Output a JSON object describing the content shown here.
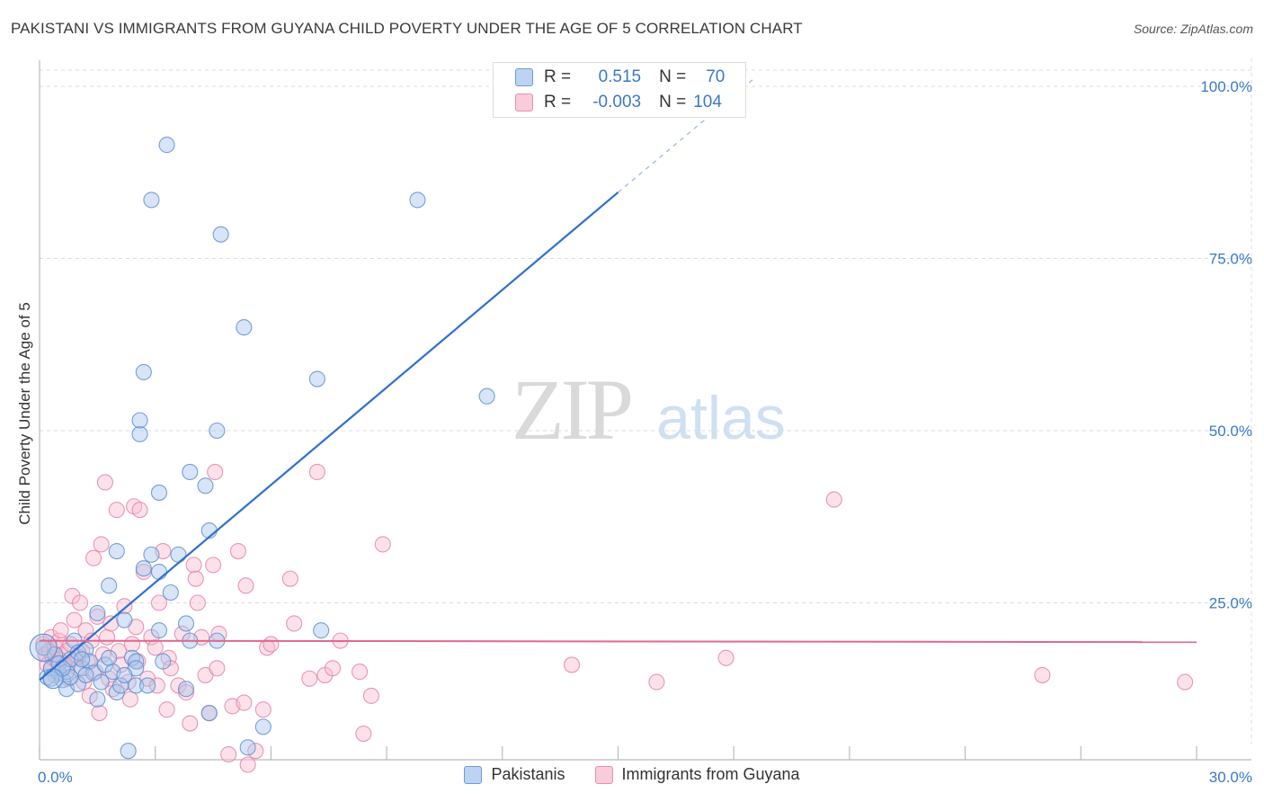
{
  "header": {
    "title": "PAKISTANI VS IMMIGRANTS FROM GUYANA CHILD POVERTY UNDER THE AGE OF 5 CORRELATION CHART",
    "source": "Source: ZipAtlas.com"
  },
  "watermark": {
    "zip": "ZIP",
    "atlas": "atlas"
  },
  "correlation_legend": {
    "rows": [
      {
        "r_label": "R =",
        "r_value": "0.515",
        "n_label": "N =",
        "n_value": "70",
        "color": "#8fb4e3"
      },
      {
        "r_label": "R =",
        "r_value": "-0.003",
        "n_label": "N =",
        "n_value": "104",
        "color": "#f0a6bf"
      }
    ]
  },
  "legend": {
    "items": [
      {
        "label": "Pakistanis",
        "color": "#8fb4e3"
      },
      {
        "label": "Immigrants from Guyana",
        "color": "#f0a6bf"
      }
    ]
  },
  "colors": {
    "blue_fill": "#a9c6ec",
    "blue_stroke": "#5e8fd2",
    "blue_line": "#2f6fcf",
    "pink_fill": "#f6bfd0",
    "pink_stroke": "#e884a6",
    "pink_line": "#e0688f",
    "grid": "#dddddd",
    "tick_label": "#3b78c8"
  },
  "chart_data": {
    "type": "scatter",
    "title": "PAKISTANI VS IMMIGRANTS FROM GUYANA CHILD POVERTY UNDER THE AGE OF 5 CORRELATION CHART",
    "xlabel": "",
    "ylabel": "Child Poverty Under the Age of 5",
    "xlim": [
      0,
      30
    ],
    "ylim": [
      0,
      100
    ],
    "x_tick_labels": [
      "0.0%",
      "30.0%"
    ],
    "y_ticks": [
      25,
      50,
      75,
      100
    ],
    "y_tick_labels": [
      "25.0%",
      "50.0%",
      "75.0%",
      "100.0%"
    ],
    "series": [
      {
        "name": "Pakistanis",
        "r": 0.515,
        "n": 70,
        "trend": {
          "x0": 0,
          "y0": 13.8,
          "x1": 15,
          "y1": 84.6,
          "dashed_to_x": 18.5,
          "dashed_to_y": 101
        },
        "points": [
          [
            0.1,
            18.5
          ],
          [
            0.2,
            14.2
          ],
          [
            0.3,
            15.5
          ],
          [
            0.4,
            17.5
          ],
          [
            0.5,
            14.8
          ],
          [
            0.5,
            16.2
          ],
          [
            0.6,
            13.8
          ],
          [
            0.7,
            15.0
          ],
          [
            0.7,
            12.5
          ],
          [
            0.8,
            16.8
          ],
          [
            0.9,
            19.5
          ],
          [
            1.0,
            13.2
          ],
          [
            1.0,
            17.8
          ],
          [
            1.1,
            15.5
          ],
          [
            1.2,
            18.2
          ],
          [
            1.3,
            16.5
          ],
          [
            1.4,
            14.8
          ],
          [
            1.5,
            11.0
          ],
          [
            1.5,
            23.5
          ],
          [
            1.6,
            13.5
          ],
          [
            1.7,
            16.0
          ],
          [
            1.8,
            17.0
          ],
          [
            1.8,
            27.5
          ],
          [
            1.9,
            15.0
          ],
          [
            2.0,
            32.5
          ],
          [
            2.0,
            12.0
          ],
          [
            2.1,
            13.0
          ],
          [
            2.2,
            22.5
          ],
          [
            2.3,
            3.5
          ],
          [
            2.4,
            17.0
          ],
          [
            2.5,
            16.5
          ],
          [
            2.5,
            13.0
          ],
          [
            2.5,
            15.5
          ],
          [
            2.6,
            49.5
          ],
          [
            2.6,
            51.5
          ],
          [
            2.7,
            30.0
          ],
          [
            2.7,
            58.5
          ],
          [
            2.8,
            13.0
          ],
          [
            2.9,
            32.0
          ],
          [
            2.9,
            83.5
          ],
          [
            3.1,
            41.0
          ],
          [
            3.1,
            21.0
          ],
          [
            3.2,
            16.5
          ],
          [
            3.3,
            91.5
          ],
          [
            3.4,
            26.5
          ],
          [
            3.6,
            32.0
          ],
          [
            3.8,
            22.0
          ],
          [
            3.8,
            12.5
          ],
          [
            3.9,
            44.0
          ],
          [
            3.9,
            19.5
          ],
          [
            4.3,
            42.0
          ],
          [
            4.4,
            9.0
          ],
          [
            4.4,
            35.5
          ],
          [
            4.6,
            19.5
          ],
          [
            4.6,
            50.0
          ],
          [
            4.7,
            78.5
          ],
          [
            5.3,
            65.0
          ],
          [
            5.4,
            4.0
          ],
          [
            5.8,
            7.0
          ],
          [
            7.2,
            57.5
          ],
          [
            7.3,
            21.0
          ],
          [
            9.8,
            83.5
          ],
          [
            11.6,
            55.0
          ],
          [
            0.3,
            14.0
          ],
          [
            1.2,
            14.5
          ],
          [
            0.8,
            14.2
          ],
          [
            3.1,
            29.5
          ],
          [
            2.2,
            14.5
          ],
          [
            1.1,
            16.8
          ],
          [
            0.6,
            15.5
          ]
        ]
      },
      {
        "name": "Immigrants from Guyana",
        "r": -0.003,
        "n": 104,
        "trend": {
          "x0": 0,
          "y0": 19.5,
          "x1": 30,
          "y1": 19.3
        },
        "points": [
          [
            0.1,
            19.0
          ],
          [
            0.15,
            17.5
          ],
          [
            0.2,
            16.0
          ],
          [
            0.25,
            18.0
          ],
          [
            0.3,
            15.5
          ],
          [
            0.3,
            20.0
          ],
          [
            0.35,
            17.0
          ],
          [
            0.4,
            18.5
          ],
          [
            0.4,
            14.5
          ],
          [
            0.45,
            16.5
          ],
          [
            0.5,
            19.5
          ],
          [
            0.5,
            15.0
          ],
          [
            0.55,
            21.0
          ],
          [
            0.6,
            17.5
          ],
          [
            0.65,
            16.0
          ],
          [
            0.7,
            18.0
          ],
          [
            0.75,
            14.0
          ],
          [
            0.8,
            19.0
          ],
          [
            0.85,
            26.0
          ],
          [
            0.9,
            22.5
          ],
          [
            0.95,
            17.0
          ],
          [
            1.0,
            15.5
          ],
          [
            1.05,
            25.0
          ],
          [
            1.1,
            18.0
          ],
          [
            1.15,
            13.5
          ],
          [
            1.2,
            21.0
          ],
          [
            1.25,
            16.5
          ],
          [
            1.3,
            11.5
          ],
          [
            1.35,
            19.5
          ],
          [
            1.4,
            31.5
          ],
          [
            1.45,
            15.0
          ],
          [
            1.5,
            23.0
          ],
          [
            1.55,
            9.0
          ],
          [
            1.6,
            33.5
          ],
          [
            1.65,
            17.5
          ],
          [
            1.7,
            42.5
          ],
          [
            1.75,
            20.0
          ],
          [
            1.8,
            14.0
          ],
          [
            1.85,
            22.0
          ],
          [
            1.9,
            12.5
          ],
          [
            2.0,
            38.5
          ],
          [
            2.05,
            18.0
          ],
          [
            2.1,
            16.0
          ],
          [
            2.2,
            24.5
          ],
          [
            2.3,
            13.5
          ],
          [
            2.35,
            11.0
          ],
          [
            2.4,
            19.0
          ],
          [
            2.45,
            39.0
          ],
          [
            2.5,
            21.5
          ],
          [
            2.55,
            16.5
          ],
          [
            2.6,
            38.5
          ],
          [
            2.7,
            29.5
          ],
          [
            2.8,
            14.0
          ],
          [
            2.9,
            20.0
          ],
          [
            3.0,
            18.5
          ],
          [
            3.05,
            13.0
          ],
          [
            3.1,
            25.0
          ],
          [
            3.2,
            32.5
          ],
          [
            3.3,
            9.5
          ],
          [
            3.35,
            17.0
          ],
          [
            3.4,
            15.5
          ],
          [
            3.6,
            13.0
          ],
          [
            3.7,
            20.5
          ],
          [
            3.8,
            12.0
          ],
          [
            3.9,
            7.5
          ],
          [
            4.0,
            30.5
          ],
          [
            4.05,
            28.5
          ],
          [
            4.1,
            25.0
          ],
          [
            4.2,
            20.0
          ],
          [
            4.3,
            14.5
          ],
          [
            4.4,
            9.0
          ],
          [
            4.5,
            30.5
          ],
          [
            4.55,
            44.0
          ],
          [
            4.6,
            15.5
          ],
          [
            4.65,
            20.5
          ],
          [
            4.9,
            3.0
          ],
          [
            5.0,
            10.0
          ],
          [
            5.15,
            32.5
          ],
          [
            5.3,
            10.5
          ],
          [
            5.35,
            27.5
          ],
          [
            5.4,
            1.5
          ],
          [
            5.6,
            3.5
          ],
          [
            5.8,
            9.5
          ],
          [
            5.9,
            18.5
          ],
          [
            6.0,
            19.0
          ],
          [
            6.5,
            28.5
          ],
          [
            6.6,
            22.0
          ],
          [
            7.0,
            14.0
          ],
          [
            7.2,
            44.0
          ],
          [
            7.4,
            14.5
          ],
          [
            7.6,
            15.5
          ],
          [
            7.8,
            19.5
          ],
          [
            8.3,
            15.0
          ],
          [
            8.4,
            6.0
          ],
          [
            8.6,
            11.5
          ],
          [
            8.9,
            33.5
          ],
          [
            13.8,
            16.0
          ],
          [
            16.0,
            13.5
          ],
          [
            17.8,
            17.0
          ],
          [
            20.6,
            40.0
          ],
          [
            26.0,
            14.5
          ],
          [
            29.7,
            13.5
          ],
          [
            0.5,
            16.8
          ],
          [
            1.0,
            17.2
          ]
        ]
      }
    ]
  }
}
